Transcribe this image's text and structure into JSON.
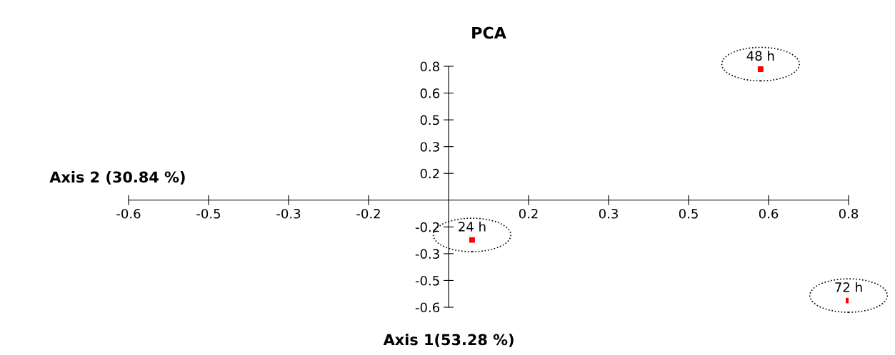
{
  "chart_data": {
    "type": "scatter",
    "title": "PCA",
    "xlabel": "Axis 1(53.28 %)",
    "ylabel": "Axis 2 (30.84 %)",
    "x": [
      0.047,
      0.624,
      0.8
    ],
    "series": [
      {
        "color": "#ff0000",
        "values": [
          -0.238,
          0.783,
          -0.6
        ]
      }
    ],
    "marker": "square",
    "annotations": [
      {
        "text": "24 h",
        "x": 0.047,
        "y": -0.238
      },
      {
        "text": "48 h",
        "x": 0.624,
        "y": 0.783
      },
      {
        "text": "72 h",
        "x": 0.8,
        "y": -0.6
      }
    ],
    "xlim": [
      -0.64,
      0.8
    ],
    "ylim": [
      -0.64,
      0.8
    ],
    "xticks": [
      {
        "value": -0.64,
        "label": "-0.6"
      },
      {
        "value": -0.48,
        "label": "-0.5"
      },
      {
        "value": -0.32,
        "label": "-0.3"
      },
      {
        "value": -0.16,
        "label": "-0.2"
      },
      {
        "value": 0.16,
        "label": "0.2"
      },
      {
        "value": 0.32,
        "label": "0.3"
      },
      {
        "value": 0.48,
        "label": "0.5"
      },
      {
        "value": 0.64,
        "label": "0.6"
      },
      {
        "value": 0.8,
        "label": "0.8"
      }
    ],
    "yticks": [
      {
        "value": -0.64,
        "label": "-0.6"
      },
      {
        "value": -0.48,
        "label": "-0.5"
      },
      {
        "value": -0.32,
        "label": "-0.3"
      },
      {
        "value": -0.16,
        "label": "-0.2"
      },
      {
        "value": 0.16,
        "label": "0.2"
      },
      {
        "value": 0.32,
        "label": "0.3"
      },
      {
        "value": 0.48,
        "label": "0.5"
      },
      {
        "value": 0.64,
        "label": "0.6"
      },
      {
        "value": 0.8,
        "label": "0.8"
      }
    ],
    "grid": false,
    "legend": false
  }
}
